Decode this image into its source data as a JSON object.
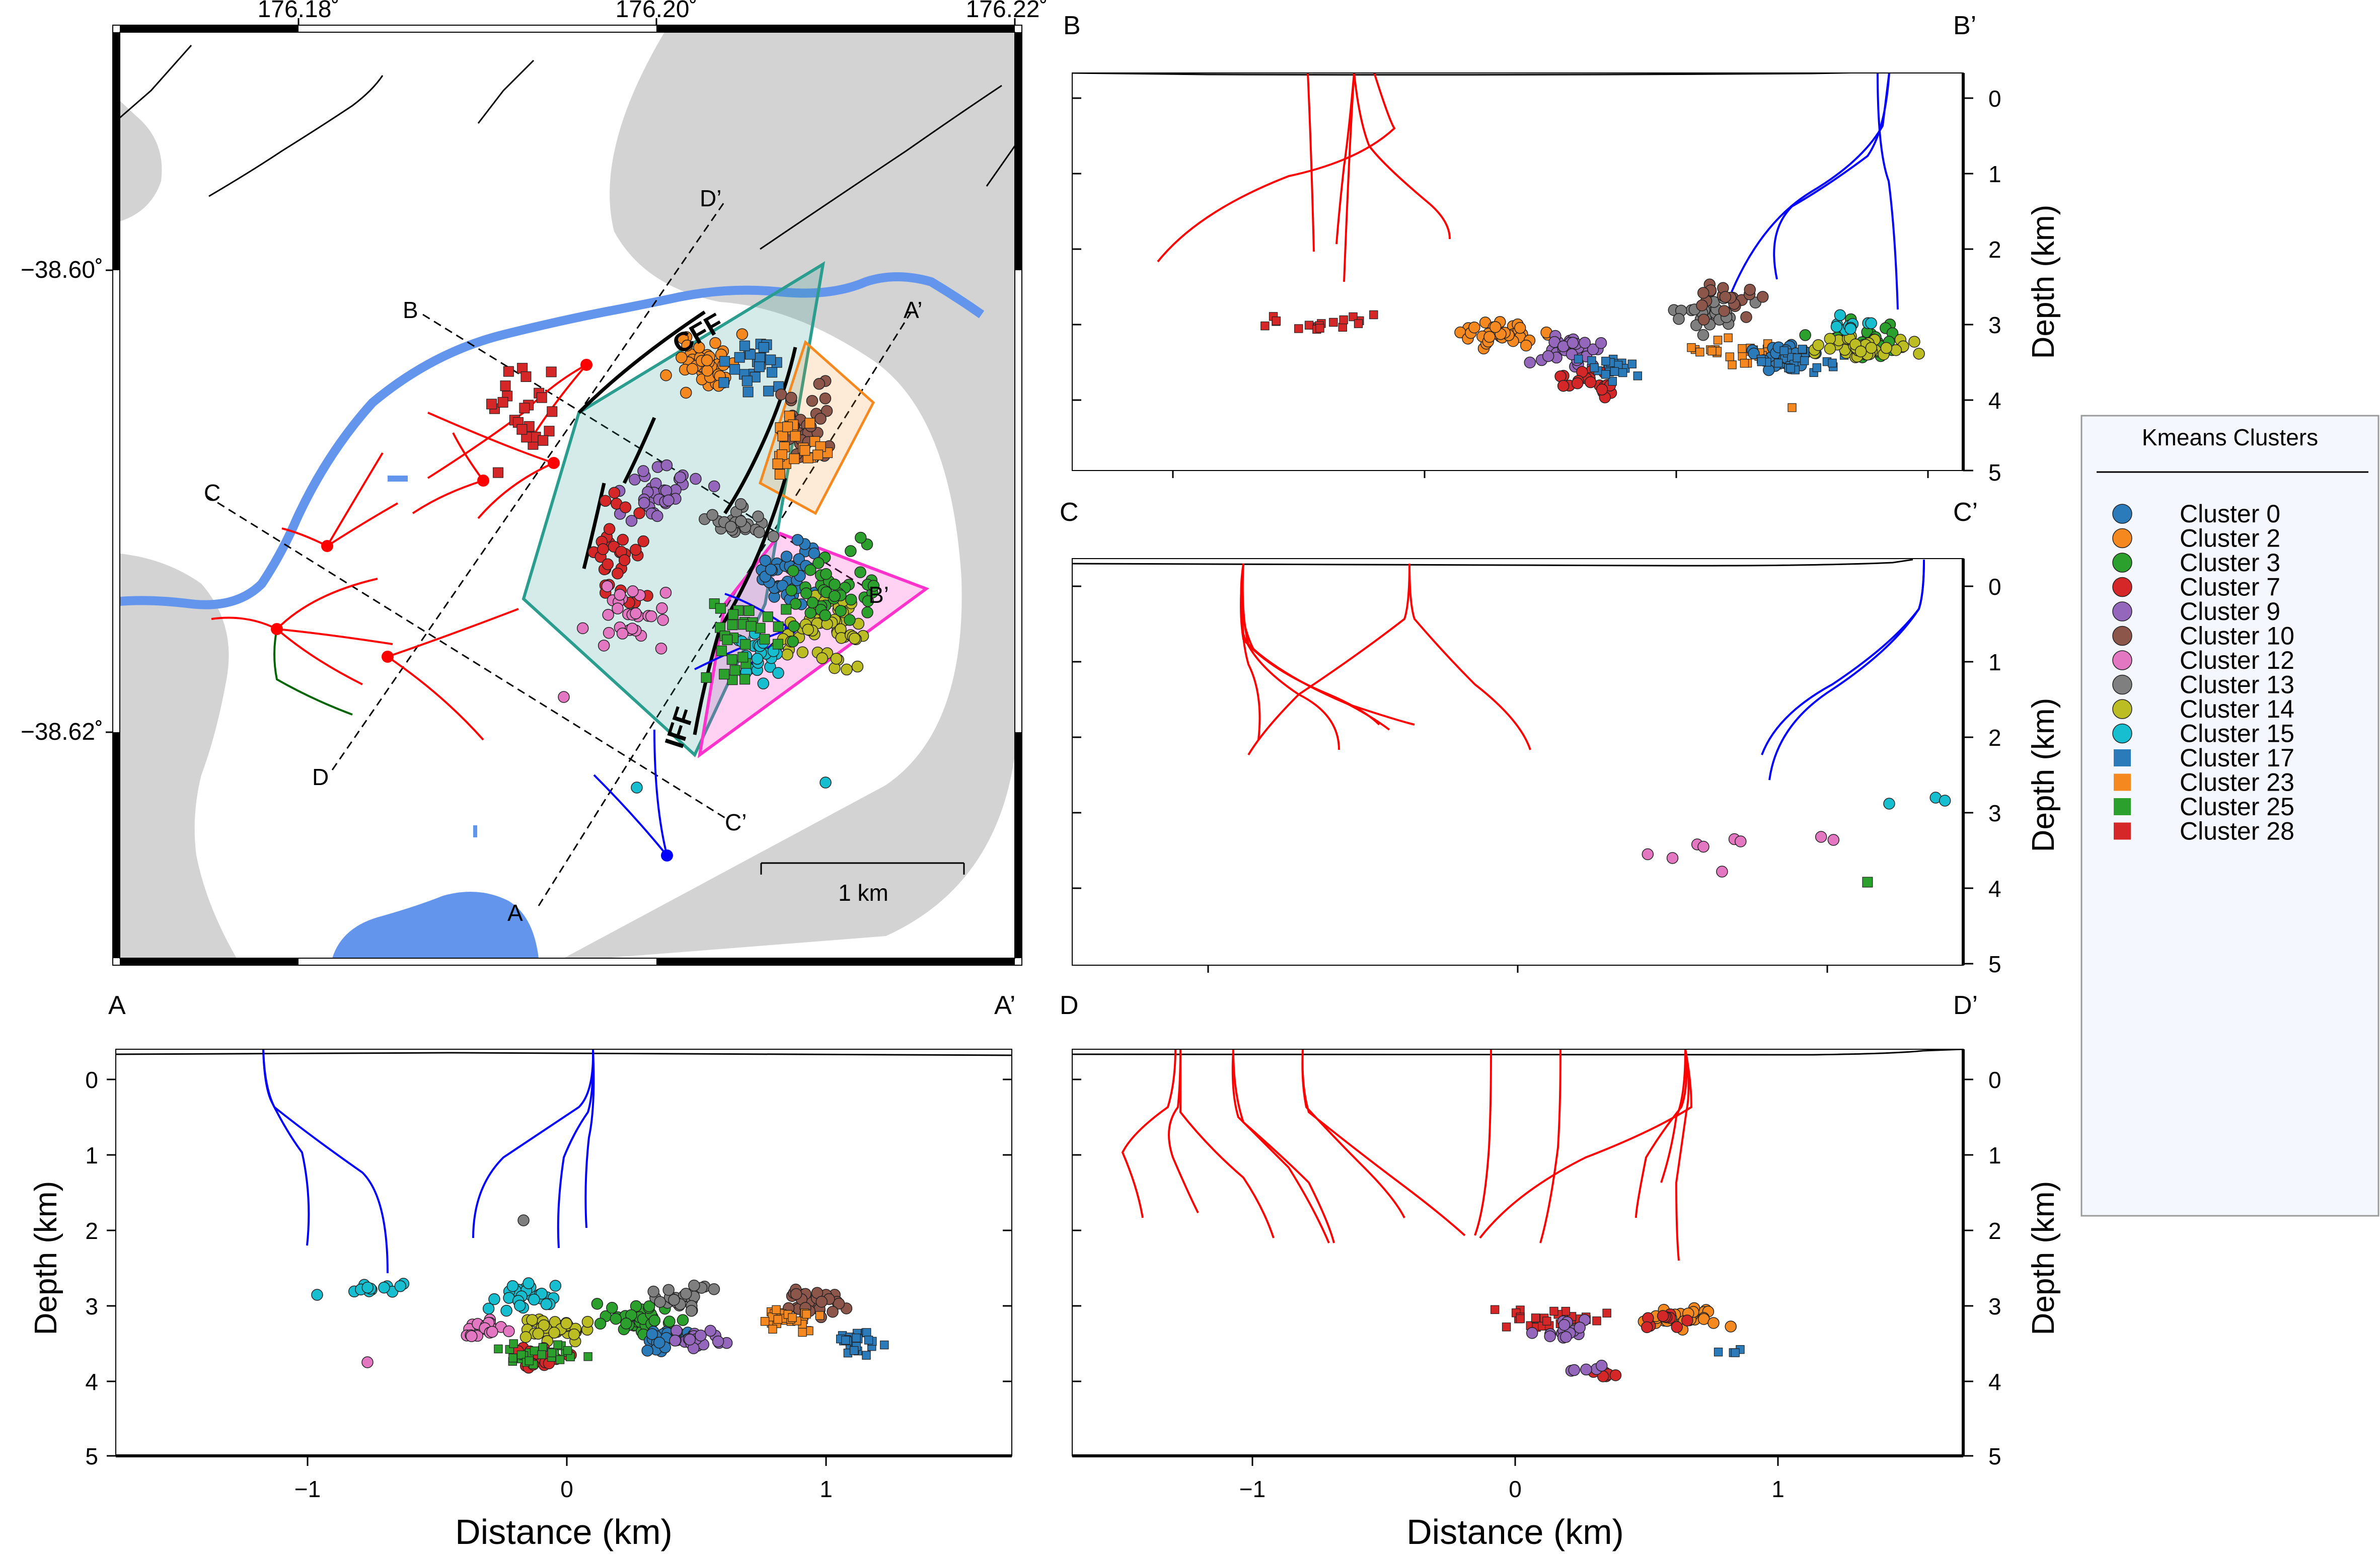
{
  "colors": {
    "cluster_0": "#2b7bba",
    "cluster_2": "#f5891f",
    "cluster_3": "#2ca02c",
    "cluster_7": "#d62728",
    "cluster_9": "#9467bd",
    "cluster_10": "#8c564b",
    "cluster_12": "#e377c2",
    "cluster_13": "#7f7f7f",
    "cluster_14": "#bcbd22",
    "cluster_15": "#17becf",
    "cluster_17": "#2b7bba",
    "cluster_23": "#f5891f",
    "cluster_25": "#2ca02c",
    "cluster_28": "#d62728",
    "land_grey": "#d3d3d3",
    "river": "#6495ed",
    "teal_polygon": "#2a9d8f",
    "orange_polygon": "#f5891f",
    "magenta_polygon": "#ff33cc",
    "well_red": "#ff0000",
    "well_blue": "#0000ff",
    "well_green": "#006400"
  },
  "legend": {
    "title": "Kmeans Clusters",
    "items": [
      {
        "label": "Cluster 0",
        "marker": "circle",
        "color": "#2b7bba"
      },
      {
        "label": "Cluster 2",
        "marker": "circle",
        "color": "#f5891f"
      },
      {
        "label": "Cluster 3",
        "marker": "circle",
        "color": "#2ca02c"
      },
      {
        "label": "Cluster 7",
        "marker": "circle",
        "color": "#d62728"
      },
      {
        "label": "Cluster 9",
        "marker": "circle",
        "color": "#9467bd"
      },
      {
        "label": "Cluster 10",
        "marker": "circle",
        "color": "#8c564b"
      },
      {
        "label": "Cluster 12",
        "marker": "circle",
        "color": "#e377c2"
      },
      {
        "label": "Cluster 13",
        "marker": "circle",
        "color": "#7f7f7f"
      },
      {
        "label": "Cluster 14",
        "marker": "circle",
        "color": "#bcbd22"
      },
      {
        "label": "Cluster 15",
        "marker": "circle",
        "color": "#17becf"
      },
      {
        "label": "Cluster 17",
        "marker": "square",
        "color": "#2b7bba"
      },
      {
        "label": "Cluster 23",
        "marker": "square",
        "color": "#f5891f"
      },
      {
        "label": "Cluster 25",
        "marker": "square",
        "color": "#2ca02c"
      },
      {
        "label": "Cluster 28",
        "marker": "square",
        "color": "#d62728"
      }
    ]
  },
  "chart_data": [
    {
      "type": "scatter",
      "subtype": "map",
      "x_ticks": [
        "176.18˚",
        "176.20˚",
        "176.22˚"
      ],
      "y_ticks": [
        "−38.60˚",
        "−38.62˚"
      ],
      "xlim": [
        176.17,
        176.22
      ],
      "ylim": [
        -38.629,
        -38.589
      ],
      "scale_bar_label": "1 km",
      "fault_labels": [
        "CFF",
        "IFF"
      ],
      "profile_labels": {
        "A": "A",
        "A_end": "A’",
        "B": "B",
        "B_end": "B’",
        "C": "C",
        "C_end": "C’",
        "D": "D",
        "D_end": "D’"
      }
    },
    {
      "type": "scatter",
      "subtype": "cross-section",
      "left_label": "B",
      "right_label": "B’",
      "ylabel": "Depth (km)",
      "y_ticks": [
        "0",
        "1",
        "2",
        "3",
        "4",
        "5"
      ],
      "ylim": [
        5,
        -0.35
      ]
    },
    {
      "type": "scatter",
      "subtype": "cross-section",
      "left_label": "C",
      "right_label": "C’",
      "ylabel": "Depth (km)",
      "y_ticks": [
        "0",
        "1",
        "2",
        "3",
        "4",
        "5"
      ],
      "ylim": [
        5,
        -0.35
      ],
      "points": [
        {
          "x": 1.2,
          "depth": 2.88,
          "cluster": "Cluster 15"
        },
        {
          "x": 1.35,
          "depth": 2.8,
          "cluster": "Cluster 15"
        },
        {
          "x": 1.38,
          "depth": 2.84,
          "cluster": "Cluster 15"
        },
        {
          "x": 0.42,
          "depth": 3.55,
          "cluster": "Cluster 12"
        },
        {
          "x": 0.5,
          "depth": 3.6,
          "cluster": "Cluster 12"
        },
        {
          "x": 0.58,
          "depth": 3.42,
          "cluster": "Cluster 12"
        },
        {
          "x": 0.6,
          "depth": 3.45,
          "cluster": "Cluster 12"
        },
        {
          "x": 0.66,
          "depth": 3.78,
          "cluster": "Cluster 12"
        },
        {
          "x": 0.7,
          "depth": 3.35,
          "cluster": "Cluster 12"
        },
        {
          "x": 0.72,
          "depth": 3.38,
          "cluster": "Cluster 12"
        },
        {
          "x": 0.98,
          "depth": 3.32,
          "cluster": "Cluster 12"
        },
        {
          "x": 1.02,
          "depth": 3.36,
          "cluster": "Cluster 12"
        },
        {
          "x": 1.13,
          "depth": 3.92,
          "cluster": "Cluster 25"
        }
      ]
    },
    {
      "type": "scatter",
      "subtype": "cross-section",
      "left_label": "A",
      "right_label": "A’",
      "xlabel": "Distance (km)",
      "ylabel": "Depth (km)",
      "x_ticks": [
        "−1",
        "0",
        "1"
      ],
      "y_ticks": [
        "0",
        "1",
        "2",
        "3",
        "4",
        "5"
      ],
      "xlim": [
        -1.7,
        1.7
      ],
      "ylim": [
        5,
        -0.35
      ]
    },
    {
      "type": "scatter",
      "subtype": "cross-section",
      "left_label": "D",
      "right_label": "D’",
      "xlabel": "Distance (km)",
      "ylabel": "Depth (km)",
      "x_ticks": [
        "−1",
        "0",
        "1"
      ],
      "y_ticks": [
        "0",
        "1",
        "2",
        "3",
        "4",
        "5"
      ],
      "xlim": [
        -1.7,
        1.7
      ],
      "ylim": [
        5,
        -0.35
      ]
    }
  ]
}
